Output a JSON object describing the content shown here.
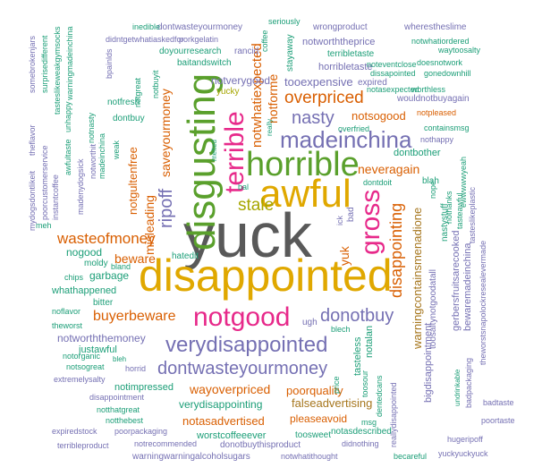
{
  "colors": {
    "gray": "#595959",
    "gold": "#e0a800",
    "green": "#5aa02c",
    "purple": "#7570b3",
    "orange": "#d95f02",
    "pink": "#e7298a",
    "teal": "#1b9e77",
    "olive": "#a6a600",
    "brown": "#a6761d"
  },
  "words": [
    {
      "text": "yuck",
      "color": "gray"
    },
    {
      "text": "disappointed",
      "color": "gold"
    },
    {
      "text": "awful",
      "color": "gold"
    },
    {
      "text": "disgusting",
      "color": "green"
    },
    {
      "text": "horrible",
      "color": "green"
    },
    {
      "text": "terrible",
      "color": "pink"
    },
    {
      "text": "madeinchina",
      "color": "purple"
    },
    {
      "text": "gross",
      "color": "pink"
    },
    {
      "text": "notgood",
      "color": "pink"
    },
    {
      "text": "verydisappointed",
      "color": "purple"
    },
    {
      "text": "dontwasteyourmoney",
      "color": "purple"
    },
    {
      "text": "donotbuy",
      "color": "purple"
    },
    {
      "text": "nasty",
      "color": "purple"
    },
    {
      "text": "overpriced",
      "color": "orange"
    },
    {
      "text": "ripoff",
      "color": "purple"
    },
    {
      "text": "stale",
      "color": "olive"
    },
    {
      "text": "wasteofmoney",
      "color": "orange"
    },
    {
      "text": "buyerbeware",
      "color": "orange"
    },
    {
      "text": "disappointing",
      "color": "orange"
    },
    {
      "text": "notwhatiexpected",
      "color": "orange"
    },
    {
      "text": "notforme",
      "color": "orange"
    },
    {
      "text": "saveyourmoney",
      "color": "orange"
    },
    {
      "text": "neveragain",
      "color": "orange"
    },
    {
      "text": "yuk",
      "color": "orange"
    },
    {
      "text": "beware",
      "color": "orange"
    },
    {
      "text": "misleading",
      "color": "orange"
    },
    {
      "text": "wayoverpriced",
      "color": "orange"
    },
    {
      "text": "notgultenfree",
      "color": "orange"
    },
    {
      "text": "warningcontainsmenadione",
      "color": "brown"
    },
    {
      "text": "poorquality",
      "color": "orange"
    },
    {
      "text": "notsogood",
      "color": "orange"
    },
    {
      "text": "tooexpensive",
      "color": "purple"
    },
    {
      "text": "notverygood",
      "color": "purple"
    },
    {
      "text": "notasadvertised",
      "color": "orange"
    },
    {
      "text": "falseadvertising",
      "color": "brown"
    },
    {
      "text": "verydisappointing",
      "color": "teal"
    },
    {
      "text": "pleaseavoid",
      "color": "orange"
    },
    {
      "text": "notimpressed",
      "color": "teal"
    },
    {
      "text": "notworththemoney",
      "color": "purple"
    },
    {
      "text": "whathappened",
      "color": "teal"
    },
    {
      "text": "garbage",
      "color": "teal"
    },
    {
      "text": "nogood",
      "color": "teal"
    },
    {
      "text": "dontbother",
      "color": "teal"
    },
    {
      "text": "justawful",
      "color": "teal"
    },
    {
      "text": "bewaremadeinchina",
      "color": "purple"
    },
    {
      "text": "gerbersfruitsarecooked",
      "color": "purple"
    },
    {
      "text": "nastystuff",
      "color": "teal"
    },
    {
      "text": "tasteless",
      "color": "teal"
    },
    {
      "text": "notalan",
      "color": "teal"
    },
    {
      "text": "bigdisappointment",
      "color": "purple"
    },
    {
      "text": "toosaltynotgoodatall",
      "color": "purple"
    },
    {
      "text": "worstcoffeeever",
      "color": "teal"
    },
    {
      "text": "toosweet",
      "color": "teal"
    },
    {
      "text": "donotbuythisproduct",
      "color": "purple"
    },
    {
      "text": "notasdescribed",
      "color": "teal"
    },
    {
      "text": "warningwarningalcoholsugars",
      "color": "purple"
    },
    {
      "text": "notwhatithought",
      "color": "purple"
    },
    {
      "text": "hugeripoff",
      "color": "purple"
    },
    {
      "text": "becareful",
      "color": "teal"
    },
    {
      "text": "yuckyuckyuck",
      "color": "purple"
    },
    {
      "text": "dontwasteyourmoney",
      "color": "purple"
    },
    {
      "text": "inedible",
      "color": "teal"
    },
    {
      "text": "didntgetwhatiaskedfor",
      "color": "purple"
    },
    {
      "text": "porkgelatin",
      "color": "purple"
    },
    {
      "text": "doyourresearch",
      "color": "teal"
    },
    {
      "text": "rancid",
      "color": "purple"
    },
    {
      "text": "baitandswitch",
      "color": "teal"
    },
    {
      "text": "notworththeprice",
      "color": "purple"
    },
    {
      "text": "notwhatiordered",
      "color": "teal"
    },
    {
      "text": "waytoosalty",
      "color": "teal"
    },
    {
      "text": "notasexpected",
      "color": "teal"
    },
    {
      "text": "wherestheslime",
      "color": "purple"
    },
    {
      "text": "wrongproduct",
      "color": "purple"
    },
    {
      "text": "seriously",
      "color": "teal"
    },
    {
      "text": "coffee",
      "color": "teal"
    },
    {
      "text": "stayaway",
      "color": "teal"
    },
    {
      "text": "terribletaste",
      "color": "teal"
    },
    {
      "text": "horribletaste",
      "color": "purple"
    },
    {
      "text": "doesnotwork",
      "color": "teal"
    },
    {
      "text": "noteventclose",
      "color": "teal"
    },
    {
      "text": "dissapointed",
      "color": "teal"
    },
    {
      "text": "gonedownhill",
      "color": "teal"
    },
    {
      "text": "expired",
      "color": "purple"
    },
    {
      "text": "worthless",
      "color": "teal"
    },
    {
      "text": "wouldnotbuyagain",
      "color": "purple"
    },
    {
      "text": "notpleased",
      "color": "orange"
    },
    {
      "text": "containsmsg",
      "color": "teal"
    },
    {
      "text": "nothappy",
      "color": "purple"
    },
    {
      "text": "overfried",
      "color": "teal"
    },
    {
      "text": "ugh",
      "color": "purple"
    },
    {
      "text": "blech",
      "color": "teal"
    },
    {
      "text": "blah",
      "color": "teal"
    },
    {
      "text": "nope",
      "color": "teal"
    },
    {
      "text": "bad",
      "color": "purple"
    },
    {
      "text": "ick",
      "color": "purple"
    },
    {
      "text": "bal",
      "color": "teal"
    },
    {
      "text": "dontdoit",
      "color": "teal"
    },
    {
      "text": "nothanks",
      "color": "teal"
    },
    {
      "text": "tasteawful",
      "color": "teal"
    },
    {
      "text": "tasteslikeplastic",
      "color": "purple"
    },
    {
      "text": "theworstsnapolockresealevermade",
      "color": "purple"
    },
    {
      "text": "ewwwwwyeah",
      "color": "teal"
    },
    {
      "text": "notgreat",
      "color": "teal"
    },
    {
      "text": "notbuyit",
      "color": "teal"
    },
    {
      "text": "yucky",
      "color": "olive"
    },
    {
      "text": "notfresh",
      "color": "teal"
    },
    {
      "text": "dontbuy",
      "color": "teal"
    },
    {
      "text": "notworthit",
      "color": "purple"
    },
    {
      "text": "madeinchina",
      "color": "teal"
    },
    {
      "text": "weak",
      "color": "teal"
    },
    {
      "text": "melted",
      "color": "teal"
    },
    {
      "text": "really",
      "color": "teal"
    },
    {
      "text": "hatedit",
      "color": "teal"
    },
    {
      "text": "moldy",
      "color": "teal"
    },
    {
      "text": "bland",
      "color": "teal"
    },
    {
      "text": "chips",
      "color": "teal"
    },
    {
      "text": "bitter",
      "color": "teal"
    },
    {
      "text": "meh",
      "color": "teal"
    },
    {
      "text": "noflavor",
      "color": "teal"
    },
    {
      "text": "theworst",
      "color": "teal"
    },
    {
      "text": "notorganic",
      "color": "teal"
    },
    {
      "text": "notsogreat",
      "color": "teal"
    },
    {
      "text": "horrid",
      "color": "purple"
    },
    {
      "text": "bleh",
      "color": "teal"
    },
    {
      "text": "extremelysalty",
      "color": "purple"
    },
    {
      "text": "disappointment",
      "color": "purple"
    },
    {
      "text": "notthatgreat",
      "color": "teal"
    },
    {
      "text": "notthebest",
      "color": "teal"
    },
    {
      "text": "poorpackaging",
      "color": "purple"
    },
    {
      "text": "expiredstock",
      "color": "purple"
    },
    {
      "text": "notrecommended",
      "color": "purple"
    },
    {
      "text": "terribleproduct",
      "color": "purple"
    },
    {
      "text": "badtaste",
      "color": "purple"
    },
    {
      "text": "poortaste",
      "color": "purple"
    },
    {
      "text": "undrinkable",
      "color": "teal"
    },
    {
      "text": "badpackaging",
      "color": "purple"
    },
    {
      "text": "dentedcans",
      "color": "teal"
    },
    {
      "text": "toosour",
      "color": "teal"
    },
    {
      "text": "price",
      "color": "teal"
    },
    {
      "text": "msg",
      "color": "teal"
    },
    {
      "text": "didnothing",
      "color": "purple"
    },
    {
      "text": "reallydisappointed",
      "color": "purple"
    },
    {
      "text": "mydogsdontlikeit",
      "color": "purple"
    },
    {
      "text": "theflavor",
      "color": "purple"
    },
    {
      "text": "somebrokenjars",
      "color": "purple"
    },
    {
      "text": "surprisedifferent",
      "color": "teal"
    },
    {
      "text": "tasteslikeweakgymsocks",
      "color": "teal"
    },
    {
      "text": "warningmadeinchina",
      "color": "teal"
    },
    {
      "text": "madenydogsick",
      "color": "purple"
    },
    {
      "text": "notnasty",
      "color": "teal"
    },
    {
      "text": "instantcoffee",
      "color": "purple"
    },
    {
      "text": "poorcustomerservice",
      "color": "purple"
    },
    {
      "text": "awfultaste",
      "color": "teal"
    },
    {
      "text": "unhappy",
      "color": "teal"
    },
    {
      "text": "bpainlds",
      "color": "purple"
    }
  ]
}
